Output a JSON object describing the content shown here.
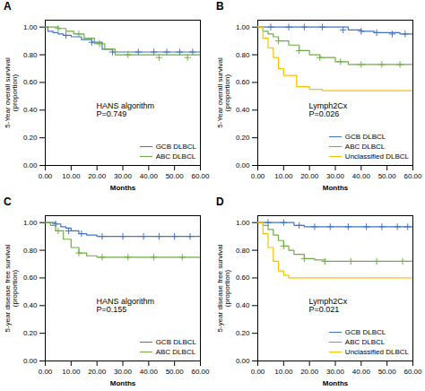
{
  "chart_data": [
    {
      "type": "step",
      "title": "A",
      "xlabel": "Months",
      "ylabel": "5-Year overall survival\n(proportion)",
      "annotation": "HANS algorithm\nP=0.749",
      "xlim": [
        0,
        60
      ],
      "xticks": [
        {
          "value": 0,
          "label": "0.00"
        },
        {
          "value": 10,
          "label": "10.00"
        },
        {
          "value": 20,
          "label": "20.00"
        },
        {
          "value": 30,
          "label": "30.00"
        },
        {
          "value": 40,
          "label": "40.00"
        },
        {
          "value": 50,
          "label": "50.00"
        },
        {
          "value": 60,
          "label": "60.00"
        }
      ],
      "ylim": [
        0.0,
        1.05
      ],
      "yticks": [
        {
          "value": 0.0,
          "label": "0.00"
        },
        {
          "value": 0.2,
          "label": "0.20"
        },
        {
          "value": 0.4,
          "label": "0.40"
        },
        {
          "value": 0.6,
          "label": "0.60"
        },
        {
          "value": 0.8,
          "label": "0.80"
        },
        {
          "value": 1.0,
          "label": "1.00"
        }
      ],
      "legend": "lower right",
      "series": [
        {
          "name": "GCB DLBCL",
          "color": "#4472c4",
          "marker": "plus",
          "x": [
            0,
            1,
            3,
            5,
            7,
            10,
            14,
            18,
            22,
            26,
            30,
            60
          ],
          "values": [
            1.0,
            0.97,
            0.96,
            0.95,
            0.94,
            0.93,
            0.91,
            0.89,
            0.84,
            0.82,
            0.82,
            0.82
          ],
          "censors_x": [
            8,
            18,
            26,
            36,
            42,
            47,
            52,
            57
          ],
          "censors_y": [
            0.94,
            0.89,
            0.82,
            0.82,
            0.82,
            0.82,
            0.82,
            0.82
          ]
        },
        {
          "name": "ABC DLBCL",
          "color": "#70ad47",
          "marker": "plus",
          "x": [
            0,
            2,
            5,
            8,
            11,
            15,
            19,
            23,
            27,
            60
          ],
          "values": [
            1.0,
            1.0,
            0.99,
            0.97,
            0.95,
            0.92,
            0.88,
            0.84,
            0.8,
            0.78
          ],
          "censors_x": [
            5,
            13,
            21,
            32,
            44,
            55
          ],
          "censors_y": [
            0.99,
            0.95,
            0.88,
            0.8,
            0.78,
            0.78
          ]
        }
      ]
    },
    {
      "type": "step",
      "title": "B",
      "xlabel": "Months",
      "ylabel": "5-Year overall survival\n(proportion)",
      "annotation": "Lymph2Cx\nP=0.026",
      "xlim": [
        0,
        60
      ],
      "xticks": [
        {
          "value": 0,
          "label": "0.00"
        },
        {
          "value": 10,
          "label": "10.00"
        },
        {
          "value": 20,
          "label": "20.00"
        },
        {
          "value": 30,
          "label": "30.00"
        },
        {
          "value": 40,
          "label": "40.00"
        },
        {
          "value": 50,
          "label": "50.00"
        },
        {
          "value": 60,
          "label": "60.00"
        }
      ],
      "ylim": [
        0.0,
        1.05
      ],
      "yticks": [
        {
          "value": 0.0,
          "label": "0.00"
        },
        {
          "value": 0.2,
          "label": "0.20"
        },
        {
          "value": 0.4,
          "label": "0.40"
        },
        {
          "value": 0.6,
          "label": "0.60"
        },
        {
          "value": 0.8,
          "label": "0.80"
        },
        {
          "value": 1.0,
          "label": "1.00"
        }
      ],
      "legend": "lower right",
      "series": [
        {
          "name": "GCB DLBCL",
          "color": "#4472c4",
          "marker": "plus",
          "x": [
            0,
            5,
            10,
            15,
            20,
            25,
            30,
            35,
            40,
            45,
            50,
            55,
            60
          ],
          "values": [
            1.0,
            1.0,
            1.0,
            1.0,
            1.0,
            1.0,
            1.0,
            0.98,
            0.97,
            0.96,
            0.96,
            0.95,
            0.95
          ],
          "censors_x": [
            5,
            12,
            18,
            25,
            33,
            40,
            46,
            52,
            57
          ],
          "censors_y": [
            1.0,
            1.0,
            1.0,
            1.0,
            0.98,
            0.97,
            0.96,
            0.95,
            0.95
          ]
        },
        {
          "name": "ABC DLBCL",
          "color": "#70ad47",
          "marker": "plus",
          "x": [
            0,
            2,
            4,
            6,
            8,
            12,
            16,
            20,
            24,
            30,
            35,
            60
          ],
          "values": [
            1.0,
            0.97,
            0.95,
            0.93,
            0.9,
            0.87,
            0.83,
            0.8,
            0.78,
            0.75,
            0.73,
            0.73
          ],
          "censors_x": [
            8,
            16,
            24,
            32,
            40,
            48,
            55
          ],
          "censors_y": [
            0.9,
            0.83,
            0.78,
            0.75,
            0.73,
            0.73,
            0.73
          ]
        },
        {
          "name": "Unclassified DLBCL",
          "color": "#ffc000",
          "marker": "plus",
          "x": [
            0,
            2,
            4,
            6,
            8,
            10,
            15,
            20,
            25,
            60
          ],
          "values": [
            1.0,
            0.92,
            0.85,
            0.78,
            0.7,
            0.65,
            0.57,
            0.55,
            0.54,
            0.54
          ],
          "censors_x": [],
          "censors_y": []
        }
      ]
    },
    {
      "type": "step",
      "title": "C",
      "xlabel": "Months",
      "ylabel": "5-year disease free survival\n(proportion)",
      "annotation": "HANS algorithm\nP=0.155",
      "xlim": [
        0,
        60
      ],
      "xticks": [
        {
          "value": 0,
          "label": "0.00"
        },
        {
          "value": 10,
          "label": "10.00"
        },
        {
          "value": 20,
          "label": "20.00"
        },
        {
          "value": 30,
          "label": "30.00"
        },
        {
          "value": 40,
          "label": "40.00"
        },
        {
          "value": 50,
          "label": "50.00"
        },
        {
          "value": 60,
          "label": "60.00"
        }
      ],
      "ylim": [
        0.0,
        1.05
      ],
      "yticks": [
        {
          "value": 0.0,
          "label": "0.00"
        },
        {
          "value": 0.2,
          "label": "0.20"
        },
        {
          "value": 0.4,
          "label": "0.40"
        },
        {
          "value": 0.6,
          "label": "0.60"
        },
        {
          "value": 0.8,
          "label": "0.80"
        },
        {
          "value": 1.0,
          "label": "1.00"
        }
      ],
      "legend": "lower right",
      "series": [
        {
          "name": "GCB DLBCL",
          "color": "#4472c4",
          "marker": "plus",
          "x": [
            0,
            2,
            4,
            6,
            8,
            10,
            13,
            16,
            20,
            25,
            60
          ],
          "values": [
            1.0,
            1.0,
            0.99,
            0.97,
            0.96,
            0.94,
            0.92,
            0.91,
            0.9,
            0.9,
            0.9
          ],
          "censors_x": [
            4,
            9,
            14,
            22,
            30,
            38,
            44,
            50,
            56
          ],
          "censors_y": [
            0.99,
            0.94,
            0.92,
            0.9,
            0.9,
            0.9,
            0.9,
            0.9,
            0.9
          ]
        },
        {
          "name": "ABC DLBCL",
          "color": "#70ad47",
          "marker": "plus",
          "x": [
            0,
            2,
            4,
            7,
            10,
            13,
            16,
            20,
            60
          ],
          "values": [
            1.0,
            0.98,
            0.94,
            0.88,
            0.82,
            0.78,
            0.76,
            0.75,
            0.75
          ],
          "censors_x": [
            5,
            13,
            22,
            32,
            42,
            53
          ],
          "censors_y": [
            0.94,
            0.78,
            0.75,
            0.75,
            0.75,
            0.75
          ]
        }
      ]
    },
    {
      "type": "step",
      "title": "D",
      "xlabel": "Months",
      "ylabel": "5-year disease free survival\n(proportion)",
      "annotation": "Lymph2Cx\nP=0.021",
      "xlim": [
        0,
        60
      ],
      "xticks": [
        {
          "value": 0,
          "label": "0.00"
        },
        {
          "value": 10,
          "label": "10.00"
        },
        {
          "value": 20,
          "label": "20.00"
        },
        {
          "value": 30,
          "label": "30.00"
        },
        {
          "value": 40,
          "label": "40.00"
        },
        {
          "value": 50,
          "label": "50.00"
        },
        {
          "value": 60,
          "label": "60.00"
        }
      ],
      "ylim": [
        0.0,
        1.05
      ],
      "yticks": [
        {
          "value": 0.0,
          "label": "0.00"
        },
        {
          "value": 0.2,
          "label": "0.20"
        },
        {
          "value": 0.4,
          "label": "0.40"
        },
        {
          "value": 0.6,
          "label": "0.60"
        },
        {
          "value": 0.8,
          "label": "0.80"
        },
        {
          "value": 1.0,
          "label": "1.00"
        }
      ],
      "legend": "lower right",
      "series": [
        {
          "name": "GCB DLBCL",
          "color": "#4472c4",
          "marker": "plus",
          "x": [
            0,
            2,
            4,
            6,
            8,
            10,
            14,
            18,
            22,
            26,
            30,
            60
          ],
          "values": [
            1.0,
            1.0,
            1.0,
            1.0,
            1.0,
            1.0,
            0.98,
            0.97,
            0.97,
            0.97,
            0.97,
            0.97
          ],
          "censors_x": [
            4,
            10,
            16,
            22,
            28,
            35,
            42,
            48,
            54,
            58
          ],
          "censors_y": [
            1.0,
            1.0,
            0.98,
            0.97,
            0.97,
            0.97,
            0.97,
            0.97,
            0.97,
            0.97
          ]
        },
        {
          "name": "ABC DLBCL",
          "color": "#70ad47",
          "marker": "plus",
          "x": [
            0,
            2,
            4,
            6,
            8,
            10,
            12,
            14,
            18,
            22,
            26,
            30,
            60
          ],
          "values": [
            1.0,
            0.98,
            0.95,
            0.91,
            0.87,
            0.83,
            0.8,
            0.77,
            0.74,
            0.73,
            0.72,
            0.72,
            0.72
          ],
          "censors_x": [
            10,
            18,
            26,
            36,
            46,
            56
          ],
          "censors_y": [
            0.83,
            0.74,
            0.72,
            0.72,
            0.72,
            0.72
          ]
        },
        {
          "name": "Unclassified DLBCL",
          "color": "#ffc000",
          "marker": "plus",
          "x": [
            0,
            2,
            4,
            6,
            8,
            10,
            12,
            60
          ],
          "values": [
            1.0,
            0.92,
            0.82,
            0.72,
            0.65,
            0.62,
            0.6,
            0.6
          ],
          "censors_x": [],
          "censors_y": []
        }
      ]
    }
  ]
}
